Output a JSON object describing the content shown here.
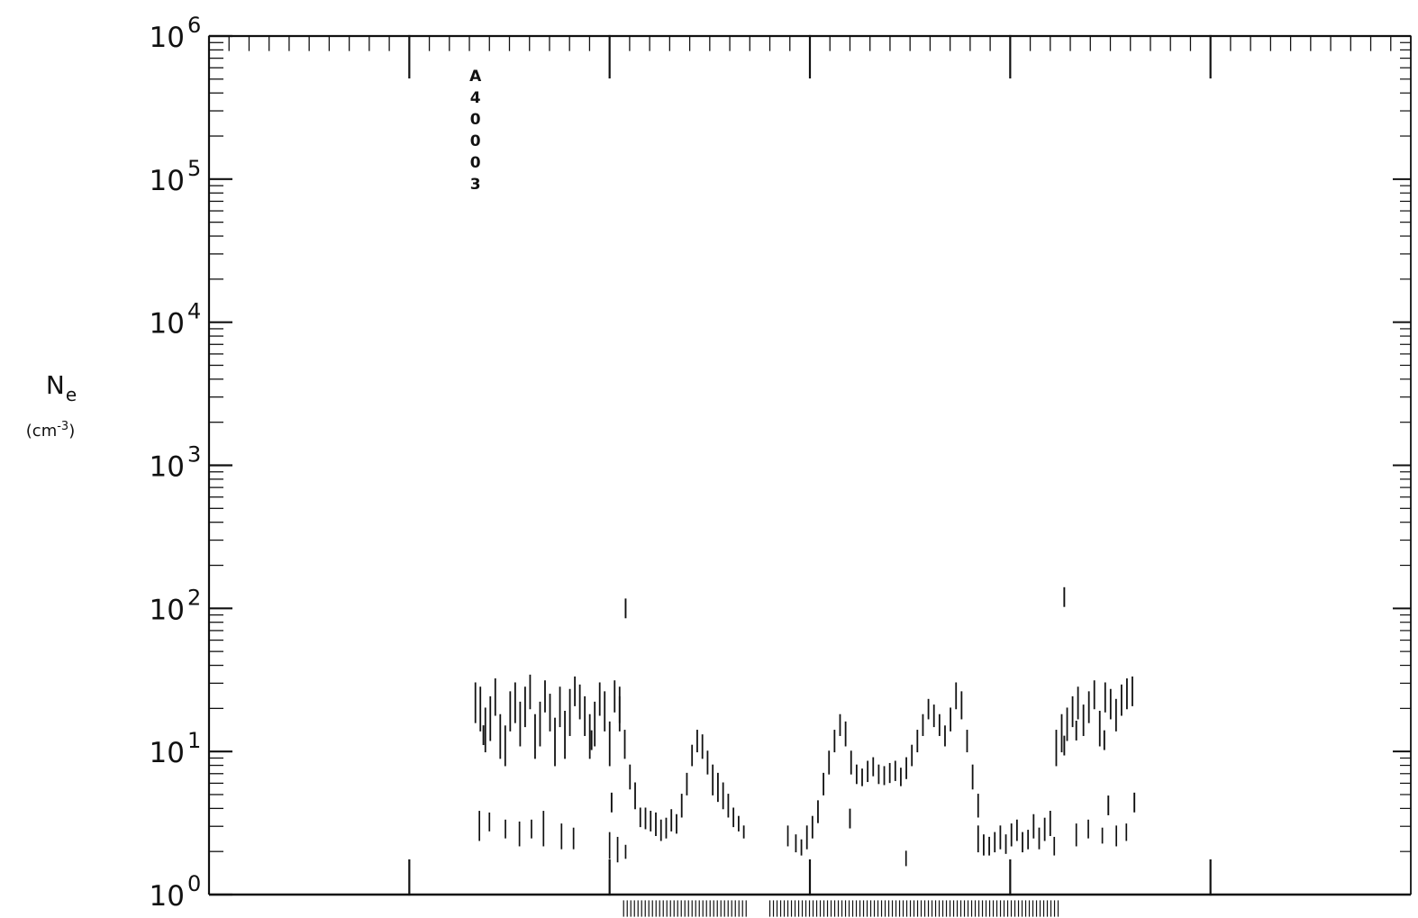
{
  "chart_data": {
    "type": "scatter",
    "annotation": "A40003",
    "ylabel": {
      "main": "N",
      "subscript": "e",
      "unit_prefix": "(",
      "unit": "cm",
      "unit_exponent": "-3",
      "unit_suffix": ")"
    },
    "y_scale": "log",
    "ylim": [
      1,
      1000000
    ],
    "y_tick_labels": [
      {
        "base": "10",
        "exp": "0",
        "value": 1
      },
      {
        "base": "10",
        "exp": "1",
        "value": 10
      },
      {
        "base": "10",
        "exp": "2",
        "value": 100
      },
      {
        "base": "10",
        "exp": "3",
        "value": 1000
      },
      {
        "base": "10",
        "exp": "4",
        "value": 10000
      },
      {
        "base": "10",
        "exp": "5",
        "value": 100000
      },
      {
        "base": "10",
        "exp": "6",
        "value": 1000000
      }
    ],
    "x_range": [
      0,
      6
    ],
    "major_x_ticks": [
      1,
      2,
      3,
      4,
      5
    ],
    "series": [
      {
        "segments": [
          {
            "x_start": 1.33,
            "x_end": 2.05,
            "values_top": [
              30,
              28,
              20,
              24,
              32,
              18,
              15,
              26,
              30,
              22,
              28,
              34,
              18,
              22,
              31,
              25,
              17,
              28,
              19,
              27,
              33,
              29,
              24,
              18,
              22,
              30,
              26,
              16,
              31,
              28
            ],
            "values_bottom": [
              16,
              14,
              10,
              12,
              18,
              9,
              8,
              14,
              16,
              11,
              15,
              20,
              9,
              11,
              19,
              14,
              8,
              15,
              9,
              13,
              21,
              17,
              13,
              9,
              11,
              18,
              14,
              8,
              19,
              16
            ]
          },
          {
            "x_start": 2.05,
            "x_end": 2.67,
            "values_top": [
              24,
              14,
              8,
              6,
              4,
              4,
              3.8,
              3.7,
              3.3,
              3.4,
              3.9,
              3.6,
              5,
              7,
              11,
              14,
              13,
              10,
              8,
              7,
              6,
              5,
              4,
              3.5,
              3
            ],
            "values_bottom": [
              14,
              9,
              5.5,
              4,
              3,
              2.9,
              2.8,
              2.6,
              2.4,
              2.5,
              2.8,
              2.7,
              3.5,
              5,
              8,
              10,
              9,
              7,
              5,
              4.5,
              4,
              3.5,
              3,
              2.8,
              2.5
            ]
          },
          {
            "x_start": 2.93,
            "x_end": 3.84,
            "values_top": [
              2.6,
              2.4,
              3,
              3.5,
              4.5,
              7,
              10,
              14,
              18,
              16,
              10,
              8,
              7.5,
              8.5,
              9,
              8,
              7.8,
              8.2,
              8.5,
              7.6,
              9,
              11,
              14,
              18,
              23,
              21,
              18,
              15,
              20,
              30,
              26,
              14,
              8,
              5
            ],
            "values_bottom": [
              2,
              1.9,
              2.1,
              2.5,
              3.2,
              5,
              7,
              10,
              13,
              11,
              7,
              6,
              5.8,
              6.2,
              6.8,
              6,
              5.9,
              6.1,
              6.3,
              5.8,
              6.5,
              8,
              10,
              13,
              17,
              15,
              13,
              11,
              14,
              20,
              17,
              10,
              5.5,
              3.5
            ]
          },
          {
            "x_start": 3.84,
            "x_end": 4.2,
            "values_top": [
              3,
              2.6,
              2.5,
              2.7,
              3,
              2.6,
              3.1,
              3.3,
              2.7,
              2.8,
              3.6,
              2.9,
              3.4,
              3.8
            ],
            "values_bottom": [
              2,
              1.9,
              1.9,
              2,
              2.1,
              1.95,
              2.2,
              2.4,
              2,
              2.1,
              2.5,
              2.1,
              2.4,
              2.6
            ]
          },
          {
            "x_start": 4.23,
            "x_end": 4.61,
            "values_top": [
              14,
              18,
              20,
              24,
              28,
              21,
              26,
              31,
              19,
              30,
              27,
              23,
              29,
              32,
              33
            ],
            "values_bottom": [
              8,
              10,
              12,
              15,
              17,
              13,
              16,
              20,
              11,
              19,
              17,
              14,
              18,
              20,
              21
            ]
          }
        ]
      },
      {
        "points": [
          {
            "x": 1.35,
            "low": 2.4,
            "high": 3.8
          },
          {
            "x": 1.4,
            "low": 2.8,
            "high": 3.7
          },
          {
            "x": 1.48,
            "low": 2.5,
            "high": 3.3
          },
          {
            "x": 1.55,
            "low": 2.2,
            "high": 3.2
          },
          {
            "x": 1.61,
            "low": 2.5,
            "high": 3.3
          },
          {
            "x": 1.67,
            "low": 2.2,
            "high": 3.8
          },
          {
            "x": 1.76,
            "low": 2.1,
            "high": 3.1
          },
          {
            "x": 1.82,
            "low": 2.1,
            "high": 2.9
          },
          {
            "x": 2.0,
            "low": 1.8,
            "high": 2.7
          },
          {
            "x": 2.04,
            "low": 1.7,
            "high": 2.5
          },
          {
            "x": 2.08,
            "low": 1.8,
            "high": 2.2
          },
          {
            "x": 2.89,
            "low": 2.2,
            "high": 3.0
          },
          {
            "x": 3.48,
            "low": 1.6,
            "high": 2.0
          },
          {
            "x": 4.22,
            "low": 1.9,
            "high": 2.5
          },
          {
            "x": 4.33,
            "low": 2.2,
            "high": 3.1
          },
          {
            "x": 4.39,
            "low": 2.5,
            "high": 3.3
          },
          {
            "x": 4.46,
            "low": 2.3,
            "high": 2.9
          },
          {
            "x": 4.53,
            "low": 2.2,
            "high": 3.0
          },
          {
            "x": 4.58,
            "low": 2.4,
            "high": 3.1
          }
        ]
      },
      {
        "points": [
          {
            "x": 2.08,
            "value": 100
          },
          {
            "x": 4.27,
            "value": 120
          },
          {
            "x": 1.37,
            "value": 13
          },
          {
            "x": 1.91,
            "value": 12
          },
          {
            "x": 2.01,
            "value": 4.4
          },
          {
            "x": 3.2,
            "value": 3.4
          },
          {
            "x": 4.27,
            "value": 11
          },
          {
            "x": 4.33,
            "value": 14
          },
          {
            "x": 4.47,
            "value": 12
          },
          {
            "x": 4.49,
            "value": 4.2
          },
          {
            "x": 4.62,
            "value": 4.4
          }
        ]
      }
    ],
    "bottom_marks": [
      {
        "x_start": 2.07,
        "x_end": 2.69
      },
      {
        "x_start": 2.8,
        "x_end": 4.25
      }
    ]
  }
}
